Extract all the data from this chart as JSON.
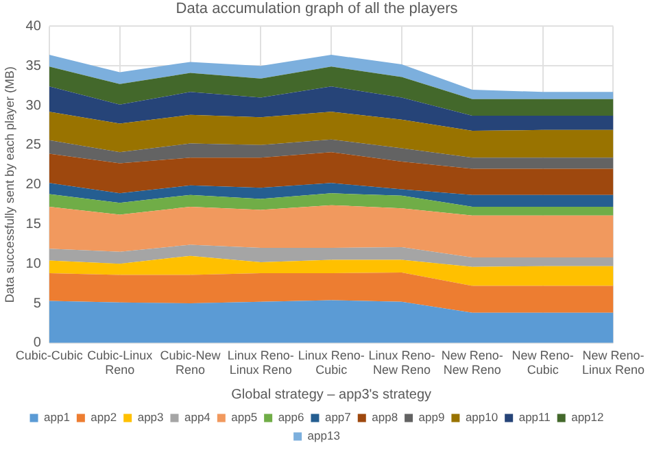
{
  "chart_data": {
    "type": "area",
    "stacked": true,
    "title": "Data accumulation graph of all the players",
    "xlabel": "Global strategy – app3's strategy",
    "ylabel": "Data successfully sent by each player (MB)",
    "categories": [
      "Cubic-Cubic",
      "Cubic-Linux Reno",
      "Cubic-New Reno",
      "Linux Reno-Linux Reno",
      "Linux Reno-Cubic",
      "Linux Reno-New Reno",
      "New Reno-New Reno",
      "New Reno-Cubic",
      "New Reno-Linux Reno"
    ],
    "ylim": [
      0,
      40
    ],
    "yticks": [
      0,
      5,
      10,
      15,
      20,
      25,
      30,
      35,
      40
    ],
    "grid": true,
    "legend": "bottom",
    "series": [
      {
        "name": "app1",
        "color": "#5b9bd5",
        "values": [
          5.3,
          5.1,
          5.0,
          5.2,
          5.4,
          5.2,
          3.8,
          3.8,
          3.8
        ]
      },
      {
        "name": "app2",
        "color": "#ed7d31",
        "values": [
          3.5,
          3.5,
          3.6,
          3.6,
          3.4,
          3.7,
          3.4,
          3.4,
          3.4
        ]
      },
      {
        "name": "app3",
        "color": "#ffc000",
        "values": [
          1.6,
          1.4,
          2.4,
          1.4,
          1.7,
          1.6,
          2.4,
          2.5,
          2.5
        ]
      },
      {
        "name": "app4",
        "color": "#a5a5a5",
        "values": [
          1.5,
          1.5,
          1.4,
          1.8,
          1.5,
          1.6,
          1.2,
          1.1,
          1.1
        ]
      },
      {
        "name": "app5",
        "color": "#f1995e",
        "values": [
          5.3,
          4.7,
          4.8,
          4.8,
          5.4,
          4.9,
          5.3,
          5.3,
          5.3
        ]
      },
      {
        "name": "app6",
        "color": "#70ad47",
        "values": [
          1.6,
          1.5,
          1.5,
          1.4,
          1.5,
          1.6,
          1.1,
          1.1,
          1.1
        ]
      },
      {
        "name": "app7",
        "color": "#255e91",
        "values": [
          1.4,
          1.2,
          1.2,
          1.4,
          1.3,
          0.8,
          1.5,
          1.5,
          1.5
        ]
      },
      {
        "name": "app8",
        "color": "#9e480e",
        "values": [
          3.7,
          3.8,
          3.5,
          3.8,
          3.9,
          3.5,
          3.3,
          3.3,
          3.3
        ]
      },
      {
        "name": "app9",
        "color": "#636363",
        "values": [
          1.7,
          1.4,
          1.8,
          1.6,
          1.6,
          1.7,
          1.4,
          1.4,
          1.4
        ]
      },
      {
        "name": "app10",
        "color": "#997300",
        "values": [
          3.6,
          3.6,
          3.6,
          3.5,
          3.5,
          3.6,
          3.4,
          3.5,
          3.5
        ]
      },
      {
        "name": "app11",
        "color": "#264478",
        "values": [
          3.2,
          2.4,
          2.9,
          2.5,
          3.2,
          2.8,
          1.9,
          1.8,
          1.8
        ]
      },
      {
        "name": "app12",
        "color": "#43682b",
        "values": [
          2.5,
          2.6,
          2.4,
          2.4,
          2.5,
          2.6,
          2.1,
          2.1,
          2.1
        ]
      },
      {
        "name": "app13",
        "color": "#7cafdd",
        "values": [
          1.5,
          1.5,
          1.4,
          1.6,
          1.5,
          1.6,
          1.2,
          0.9,
          0.9
        ]
      }
    ]
  }
}
